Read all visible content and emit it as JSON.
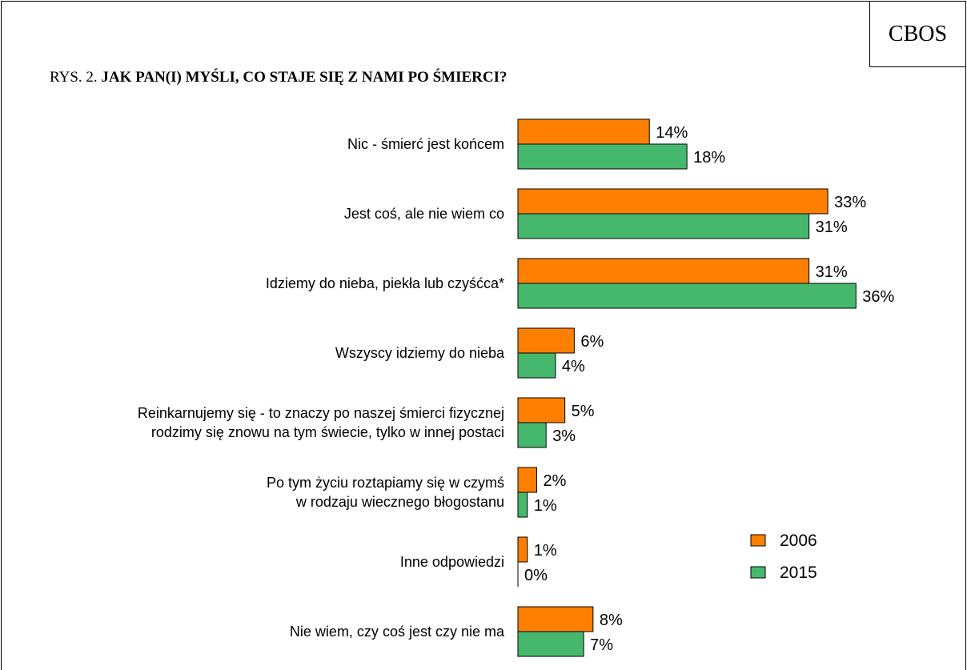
{
  "header": {
    "badge": "CBOS",
    "title_prefix": "RYS. 2.",
    "title_main": "JAK PAN(I) MYŚLI, CO STAJE SIĘ Z NAMI PO  ŚMIERCI?"
  },
  "colors": {
    "2006": "#FF7F00",
    "2015": "#46B86E"
  },
  "chart_data": {
    "type": "bar",
    "orientation": "horizontal",
    "title": "JAK PAN(I) MYŚLI, CO STAJE SIĘ Z NAMI PO  ŚMIERCI?",
    "categories": [
      "Nic - śmierć jest końcem",
      "Jest coś, ale nie wiem co",
      "Idziemy do nieba, piekła lub czyśćca*",
      "Wszyscy idziemy do nieba",
      "Reinkarnujemy się - to znaczy po naszej śmierci fizycznej\nrodzimy się znowu na tym świecie, tylko w innej postaci",
      "Po tym życiu roztapiamy się w czymś\nw  rodzaju wiecznego błogostanu",
      "Inne odpowiedzi",
      "Nie wiem, czy coś jest czy nie ma"
    ],
    "series": [
      {
        "name": "2006",
        "values": [
          14,
          33,
          31,
          6,
          5,
          2,
          1,
          8
        ]
      },
      {
        "name": "2015",
        "values": [
          18,
          31,
          36,
          4,
          3,
          1,
          0,
          7
        ]
      }
    ],
    "value_suffix": "%",
    "legend_position": "right",
    "grid": false
  }
}
